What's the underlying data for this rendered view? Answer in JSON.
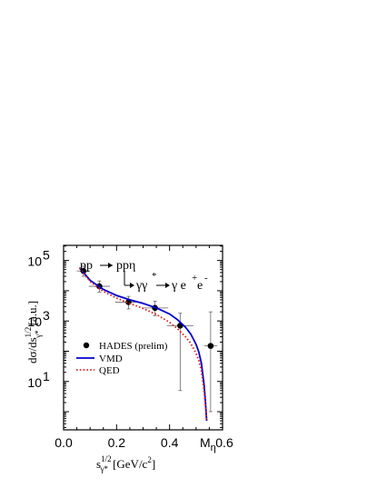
{
  "chart_data": {
    "type": "scatter",
    "xlabel": "s",
    "xlabel_sup": "1/2",
    "xlabel_sub": "γ*",
    "xlabel_unit": "[GeV/c",
    "xlabel_unit_sup": "2",
    "xlabel_unit_end": "]",
    "ylabel_main": "dσ/ds",
    "ylabel_sup": "1/2",
    "ylabel_sub": "γ*",
    "ylabel_unit": "[a.u.]",
    "xlim": [
      0.0,
      0.6
    ],
    "ylim_log10": [
      -0.6,
      5.5
    ],
    "log_y": true,
    "x_ticks": [
      "0.0",
      "0.2",
      "0.4",
      "0.6"
    ],
    "y_ticks": [
      {
        "base": "10",
        "exp": "1"
      },
      {
        "base": "10",
        "exp": "3"
      },
      {
        "base": "10",
        "exp": "5"
      }
    ],
    "m_eta_label": "M",
    "m_eta_sub": "η",
    "reaction_line1_left": "pp",
    "reaction_line1_right": "ppη",
    "reaction_line2_left": "γγ",
    "reaction_line2_star": "*",
    "reaction_line2_right": "γ e",
    "reaction_eplus": "+",
    "reaction_e": "e",
    "reaction_eminus": "-",
    "series": [
      {
        "name": "HADES (prelim)",
        "kind": "points",
        "color": "#000000",
        "points": [
          {
            "x": 0.075,
            "y": 45000,
            "xerr": 0.025,
            "ylow": 30000,
            "yhigh": 65000
          },
          {
            "x": 0.135,
            "y": 14000,
            "xerr": 0.04,
            "ylow": 9000,
            "yhigh": 21000
          },
          {
            "x": 0.245,
            "y": 4200,
            "xerr": 0.05,
            "ylow": 2500,
            "yhigh": 6500
          },
          {
            "x": 0.345,
            "y": 2700,
            "xerr": 0.05,
            "ylow": 1500,
            "yhigh": 4500
          },
          {
            "x": 0.44,
            "y": 700,
            "xerr": 0.05,
            "ylow": 5,
            "yhigh": 1800
          },
          {
            "x": 0.555,
            "y": 150,
            "xerr": 0.025,
            "ylow": 1,
            "yhigh": 2000
          }
        ]
      },
      {
        "name": "VMD",
        "kind": "line",
        "color": "#0000cc",
        "x": [
          0.06,
          0.1,
          0.15,
          0.2,
          0.25,
          0.3,
          0.35,
          0.4,
          0.43,
          0.46,
          0.48,
          0.5,
          0.51,
          0.52,
          0.53,
          0.535,
          0.54
        ],
        "y": [
          58000,
          22000,
          11000,
          7000,
          5000,
          3800,
          2700,
          1700,
          1100,
          620,
          370,
          170,
          95,
          40,
          8,
          2.5,
          0.5
        ]
      },
      {
        "name": "QED",
        "kind": "dotted",
        "color": "#e02020",
        "x": [
          0.06,
          0.1,
          0.15,
          0.2,
          0.25,
          0.3,
          0.35,
          0.4,
          0.43,
          0.46,
          0.48,
          0.5,
          0.51,
          0.52,
          0.53,
          0.535,
          0.54
        ],
        "y": [
          56000,
          20000,
          9500,
          5700,
          3800,
          2600,
          1650,
          900,
          550,
          300,
          180,
          85,
          50,
          22,
          5,
          1.8,
          0.5
        ]
      }
    ]
  }
}
